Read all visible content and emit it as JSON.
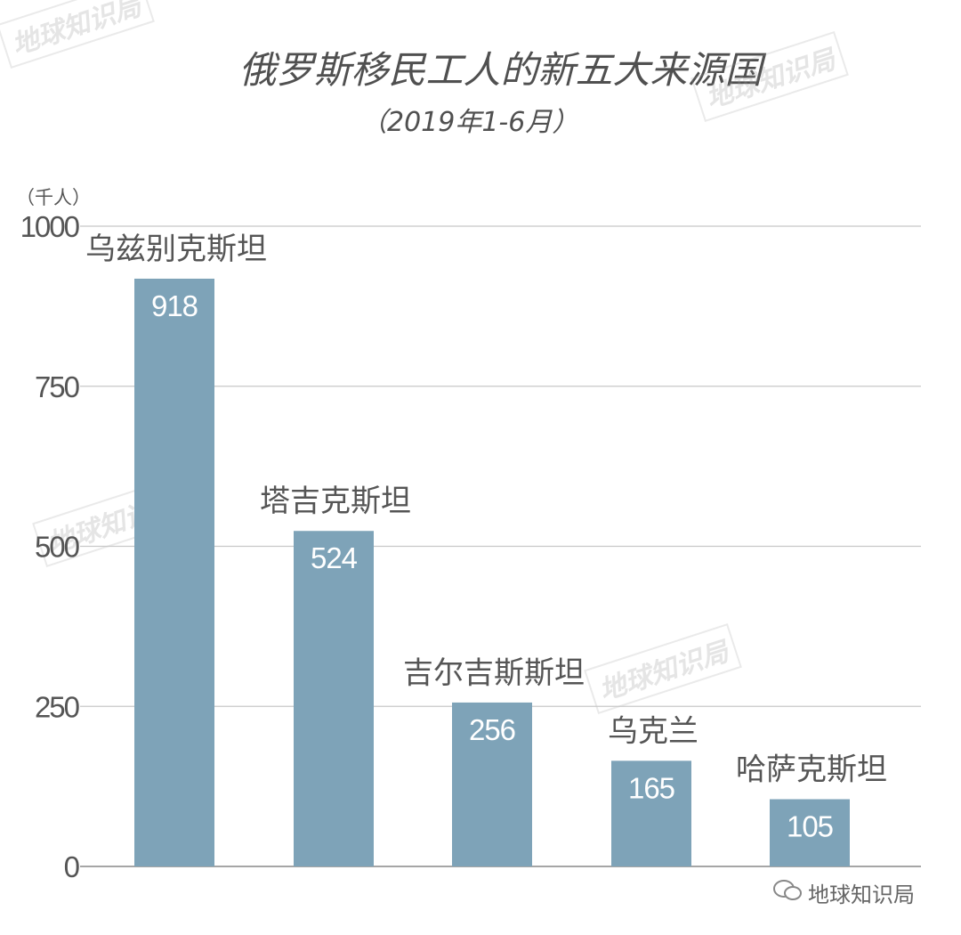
{
  "chart_data": {
    "type": "bar",
    "title": "俄罗斯移民工人的新五大来源国",
    "subtitle": "（2019年1-6月）",
    "ylabel": "（千人）",
    "xlabel": "",
    "categories": [
      "乌兹别克斯坦",
      "塔吉克斯坦",
      "吉尔吉斯斯坦",
      "乌克兰",
      "哈萨克斯坦"
    ],
    "values": [
      918,
      524,
      256,
      165,
      105
    ],
    "ylim": [
      0,
      1000
    ],
    "yticks": [
      0,
      250,
      500,
      750,
      1000
    ],
    "grid": true,
    "bar_color": "#7ea3b8",
    "data_label_color": "#ffffff"
  },
  "watermark": "地球知识局",
  "footer": {
    "icon": "wechat-icon",
    "text": "地球知识局"
  }
}
